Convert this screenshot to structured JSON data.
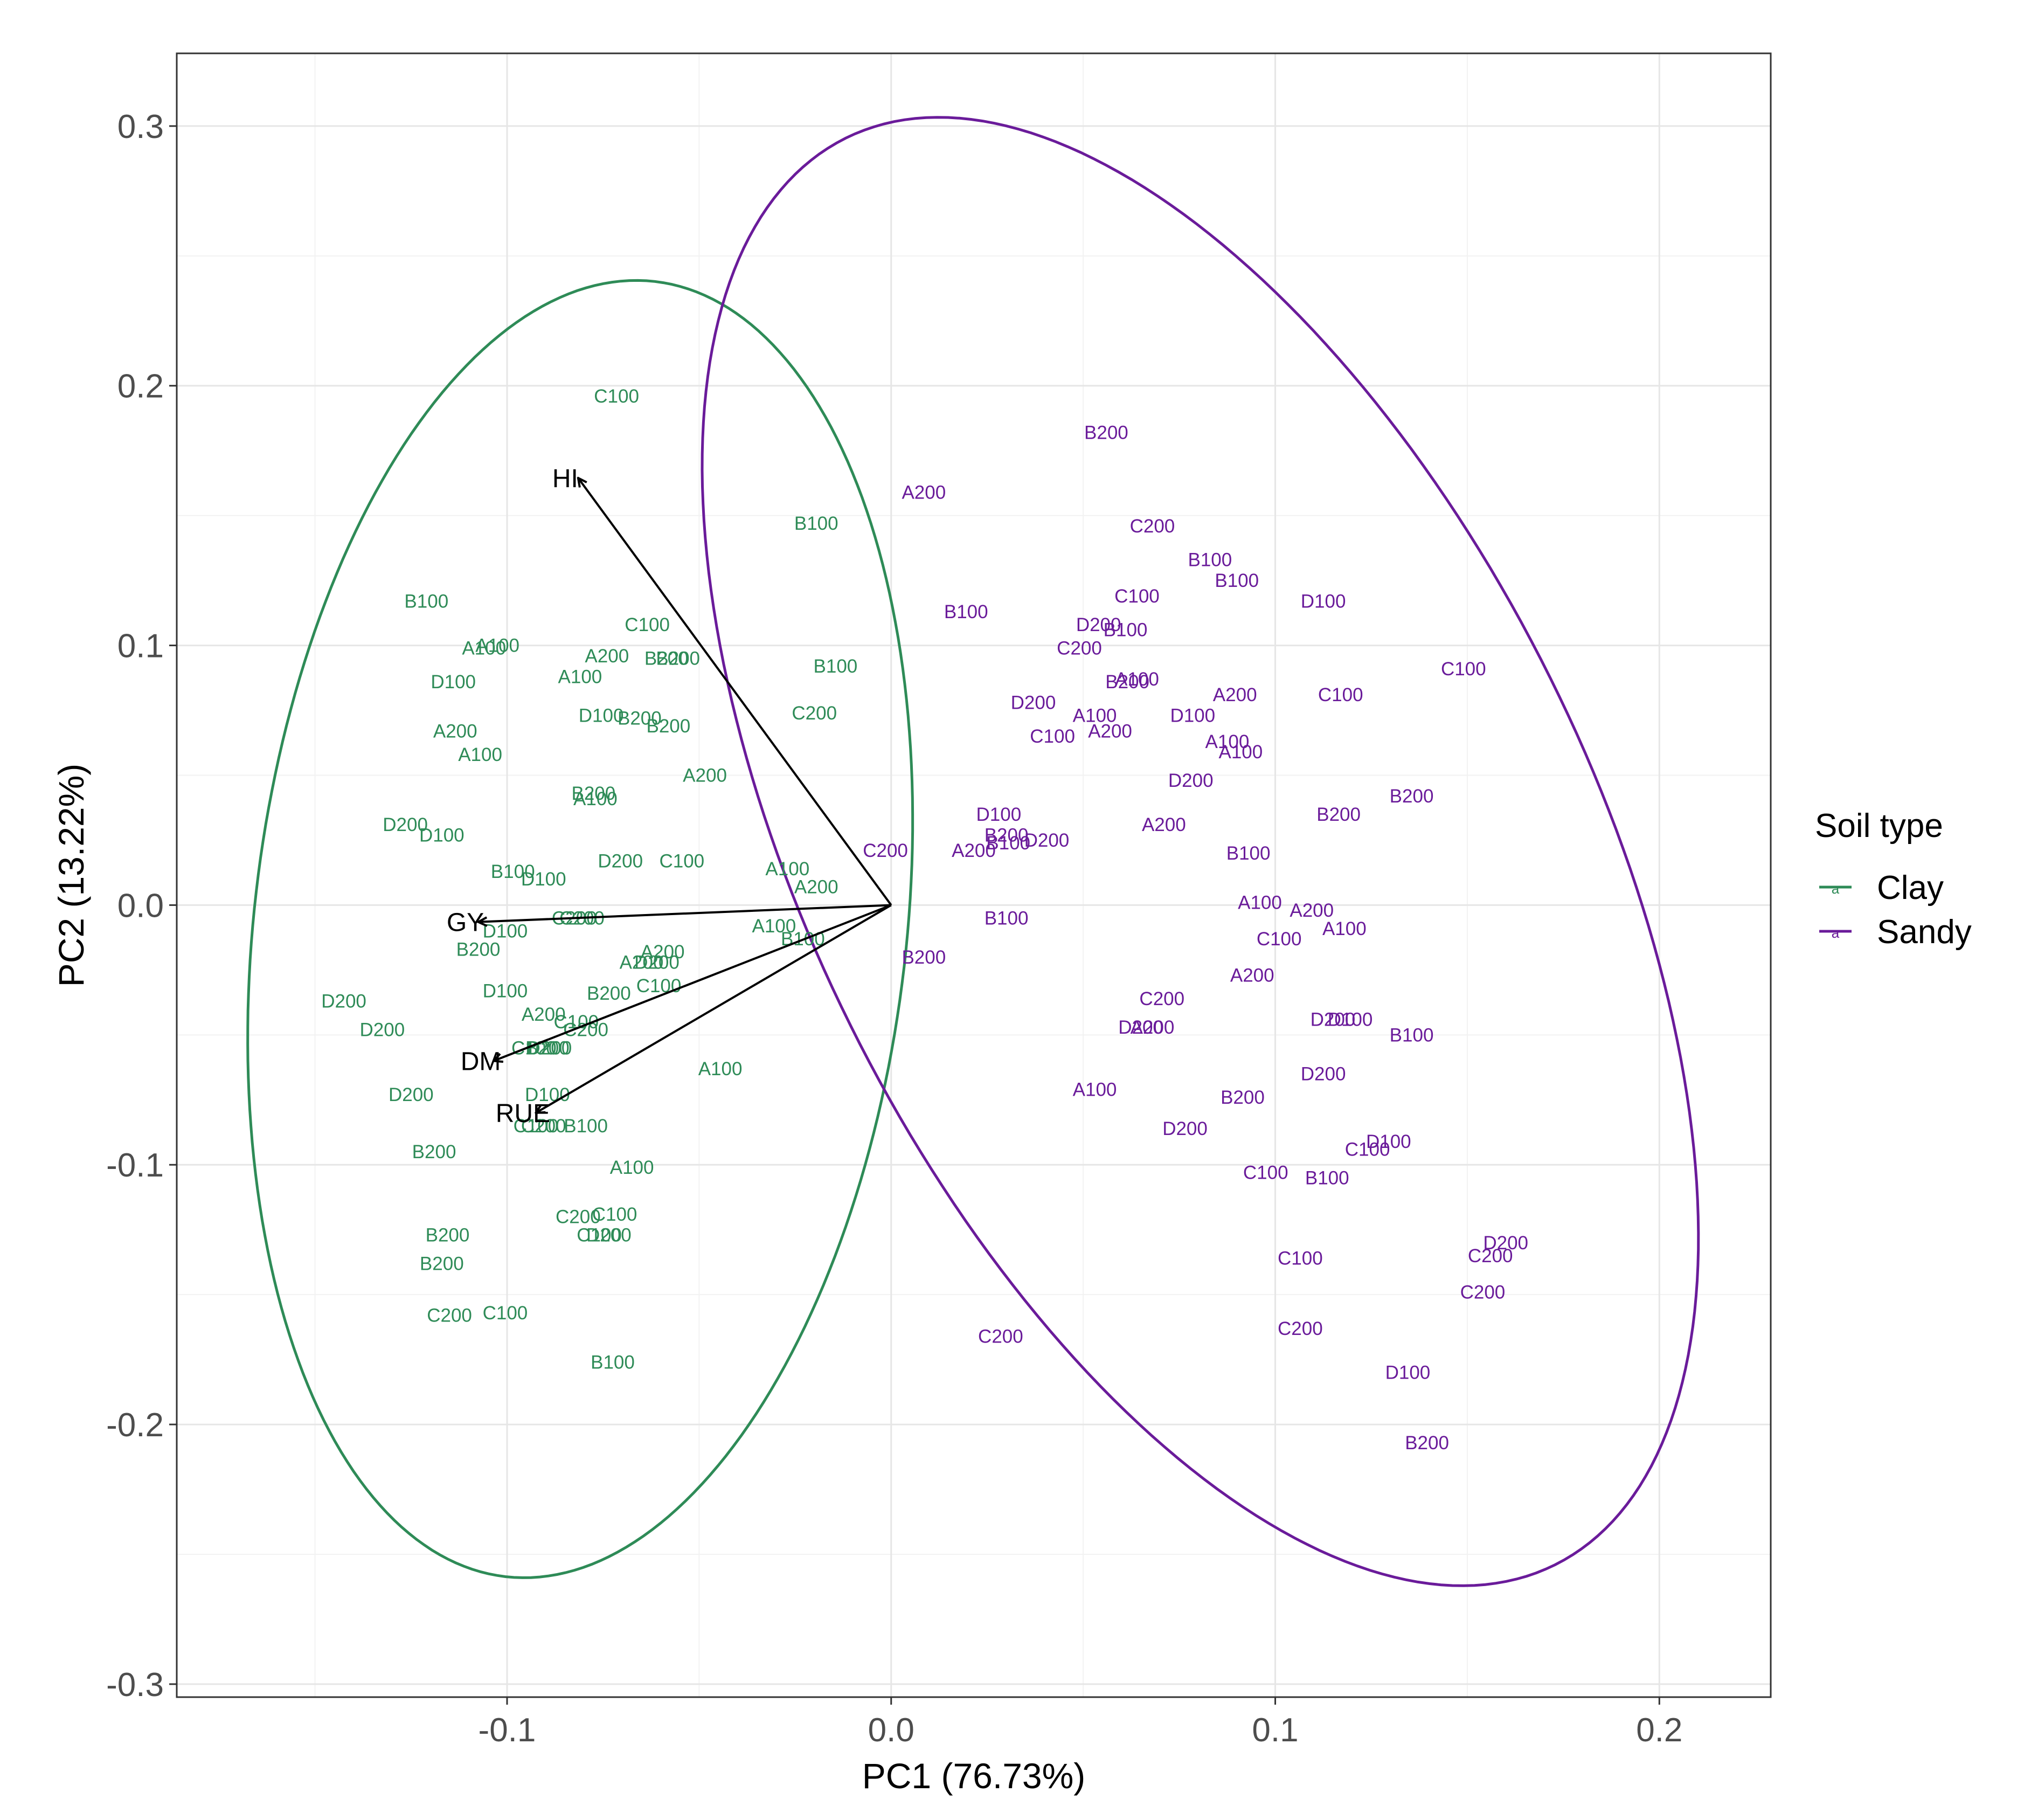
{
  "chart_data": {
    "type": "scatter",
    "subtype": "pca-biplot",
    "xlabel": "PC1 (76.73%)",
    "ylabel": "PC2 (13.22%)",
    "xlim": [
      -0.186,
      0.229
    ],
    "ylim": [
      -0.305,
      0.328
    ],
    "xticks": [
      -0.1,
      0.0,
      0.1,
      0.2
    ],
    "xtick_labels": [
      "-0.1",
      "0.0",
      "0.1",
      "0.2"
    ],
    "yticks": [
      -0.3,
      -0.2,
      -0.1,
      0.0,
      0.1,
      0.2,
      0.3
    ],
    "ytick_labels": [
      "-0.3",
      "-0.2",
      "-0.1",
      "0.0",
      "0.1",
      "0.2",
      "0.3"
    ],
    "grid": true,
    "legend": {
      "title": "Soil type",
      "position": "right",
      "glyph": "a",
      "entries": [
        {
          "label": "Clay",
          "color": "#2e8b57"
        },
        {
          "label": "Sandy",
          "color": "#6a1b9a"
        }
      ]
    },
    "series": [
      {
        "name": "Clay",
        "color": "#2e8b57",
        "ellipse": {
          "center": [
            -0.057,
            -0.009
          ],
          "points": [
            [
              -0.06,
              0.248
            ],
            [
              0.003,
              -0.01
            ],
            [
              -0.103,
              -0.267
            ],
            [
              -0.168,
              -0.07
            ],
            [
              -0.123,
              0.18
            ],
            [
              -0.01,
              0.15
            ],
            [
              0.0,
              -0.08
            ],
            [
              -0.16,
              0.05
            ],
            [
              -0.08,
              -0.24
            ]
          ]
        },
        "points": [
          {
            "label": "C100",
            "x": -0.0715,
            "y": 0.196
          },
          {
            "label": "B100",
            "x": -0.0195,
            "y": 0.147
          },
          {
            "label": "B100",
            "x": -0.121,
            "y": 0.117
          },
          {
            "label": "C100",
            "x": -0.0635,
            "y": 0.108
          },
          {
            "label": "A100",
            "x": -0.106,
            "y": 0.099
          },
          {
            "label": "A100",
            "x": -0.1025,
            "y": 0.1
          },
          {
            "label": "A200",
            "x": -0.074,
            "y": 0.096
          },
          {
            "label": "B200",
            "x": -0.0585,
            "y": 0.095
          },
          {
            "label": "B200",
            "x": -0.0555,
            "y": 0.095
          },
          {
            "label": "D100",
            "x": -0.114,
            "y": 0.086
          },
          {
            "label": "A100",
            "x": -0.081,
            "y": 0.088
          },
          {
            "label": "B100",
            "x": -0.0145,
            "y": 0.092
          },
          {
            "label": "D100",
            "x": -0.0755,
            "y": 0.073
          },
          {
            "label": "B200",
            "x": -0.0655,
            "y": 0.072
          },
          {
            "label": "B200",
            "x": -0.058,
            "y": 0.069
          },
          {
            "label": "C200",
            "x": -0.02,
            "y": 0.074
          },
          {
            "label": "A200",
            "x": -0.1135,
            "y": 0.067
          },
          {
            "label": "A100",
            "x": -0.107,
            "y": 0.058
          },
          {
            "label": "A200",
            "x": -0.0485,
            "y": 0.05
          },
          {
            "label": "B200",
            "x": -0.0775,
            "y": 0.043
          },
          {
            "label": "A100",
            "x": -0.077,
            "y": 0.041
          },
          {
            "label": "D200",
            "x": -0.1265,
            "y": 0.031
          },
          {
            "label": "D100",
            "x": -0.117,
            "y": 0.027
          },
          {
            "label": "D200",
            "x": -0.0705,
            "y": 0.017
          },
          {
            "label": "C100",
            "x": -0.0545,
            "y": 0.017
          },
          {
            "label": "B100",
            "x": -0.0985,
            "y": 0.013
          },
          {
            "label": "D100",
            "x": -0.0905,
            "y": 0.01
          },
          {
            "label": "A100",
            "x": -0.027,
            "y": 0.014
          },
          {
            "label": "A200",
            "x": -0.0195,
            "y": 0.007
          },
          {
            "label": "C200",
            "x": -0.0825,
            "y": -0.005
          },
          {
            "label": "C200",
            "x": -0.0805,
            "y": -0.005
          },
          {
            "label": "D100",
            "x": -0.1005,
            "y": -0.01
          },
          {
            "label": "A100",
            "x": -0.0305,
            "y": -0.008
          },
          {
            "label": "B100",
            "x": -0.023,
            "y": -0.013
          },
          {
            "label": "B200",
            "x": -0.1075,
            "y": -0.017
          },
          {
            "label": "A200",
            "x": -0.065,
            "y": -0.022
          },
          {
            "label": "D200",
            "x": -0.061,
            "y": -0.022
          },
          {
            "label": "A200",
            "x": -0.0595,
            "y": -0.018
          },
          {
            "label": "C100",
            "x": -0.0605,
            "y": -0.031
          },
          {
            "label": "D200",
            "x": -0.1425,
            "y": -0.037
          },
          {
            "label": "D100",
            "x": -0.1005,
            "y": -0.033
          },
          {
            "label": "B200",
            "x": -0.0735,
            "y": -0.034
          },
          {
            "label": "A200",
            "x": -0.0905,
            "y": -0.042
          },
          {
            "label": "C100",
            "x": -0.082,
            "y": -0.045
          },
          {
            "label": "C200",
            "x": -0.0795,
            "y": -0.048
          },
          {
            "label": "D200",
            "x": -0.1325,
            "y": -0.048
          },
          {
            "label": "C100",
            "x": -0.093,
            "y": -0.055
          },
          {
            "label": "B200",
            "x": -0.0895,
            "y": -0.055
          },
          {
            "label": "D200",
            "x": -0.089,
            "y": -0.055
          },
          {
            "label": "A100",
            "x": -0.0445,
            "y": -0.063
          },
          {
            "label": "D100",
            "x": -0.0895,
            "y": -0.073
          },
          {
            "label": "D200",
            "x": -0.125,
            "y": -0.073
          },
          {
            "label": "C100",
            "x": -0.0925,
            "y": -0.085
          },
          {
            "label": "C200",
            "x": -0.0905,
            "y": -0.085
          },
          {
            "label": "B100",
            "x": -0.0795,
            "y": -0.085
          },
          {
            "label": "B200",
            "x": -0.119,
            "y": -0.095
          },
          {
            "label": "A100",
            "x": -0.0675,
            "y": -0.101
          },
          {
            "label": "C200",
            "x": -0.0815,
            "y": -0.12
          },
          {
            "label": "C100",
            "x": -0.072,
            "y": -0.119
          },
          {
            "label": "C100",
            "x": -0.076,
            "y": -0.127
          },
          {
            "label": "D200",
            "x": -0.0735,
            "y": -0.127
          },
          {
            "label": "B200",
            "x": -0.1155,
            "y": -0.127
          },
          {
            "label": "B200",
            "x": -0.117,
            "y": -0.138
          },
          {
            "label": "C200",
            "x": -0.115,
            "y": -0.158
          },
          {
            "label": "C100",
            "x": -0.1005,
            "y": -0.157
          },
          {
            "label": "B100",
            "x": -0.0725,
            "y": -0.176
          }
        ]
      },
      {
        "name": "Sandy",
        "color": "#6a1b9a",
        "ellipse": {
          "center": [
            0.093,
            0.013
          ],
          "points": [
            [
              0.018,
              0.298
            ],
            [
              0.207,
              -0.13
            ],
            [
              0.152,
              -0.276
            ],
            [
              -0.028,
              -0.01
            ],
            [
              -0.047,
              0.15
            ],
            [
              0.174,
              0.08
            ],
            [
              0.172,
              -0.25
            ],
            [
              0.04,
              -0.14
            ],
            [
              0.1,
              0.24
            ]
          ]
        },
        "points": [
          {
            "label": "B200",
            "x": 0.056,
            "y": 0.182
          },
          {
            "label": "A200",
            "x": 0.0085,
            "y": 0.159
          },
          {
            "label": "C200",
            "x": 0.068,
            "y": 0.146
          },
          {
            "label": "B100",
            "x": 0.083,
            "y": 0.133
          },
          {
            "label": "B100",
            "x": 0.09,
            "y": 0.125
          },
          {
            "label": "C100",
            "x": 0.064,
            "y": 0.119
          },
          {
            "label": "D100",
            "x": 0.1125,
            "y": 0.117
          },
          {
            "label": "B100",
            "x": 0.0195,
            "y": 0.113
          },
          {
            "label": "D200",
            "x": 0.054,
            "y": 0.108
          },
          {
            "label": "B100",
            "x": 0.061,
            "y": 0.106
          },
          {
            "label": "C200",
            "x": 0.049,
            "y": 0.099
          },
          {
            "label": "C100",
            "x": 0.149,
            "y": 0.091
          },
          {
            "label": "A100",
            "x": 0.064,
            "y": 0.087
          },
          {
            "label": "B200",
            "x": 0.0615,
            "y": 0.086
          },
          {
            "label": "A200",
            "x": 0.0895,
            "y": 0.081
          },
          {
            "label": "C100",
            "x": 0.117,
            "y": 0.081
          },
          {
            "label": "D200",
            "x": 0.037,
            "y": 0.078
          },
          {
            "label": "A100",
            "x": 0.053,
            "y": 0.073
          },
          {
            "label": "D100",
            "x": 0.0785,
            "y": 0.073
          },
          {
            "label": "C100",
            "x": 0.042,
            "y": 0.065
          },
          {
            "label": "A200",
            "x": 0.057,
            "y": 0.067
          },
          {
            "label": "A100",
            "x": 0.0875,
            "y": 0.063
          },
          {
            "label": "A100",
            "x": 0.091,
            "y": 0.059
          },
          {
            "label": "D200",
            "x": 0.078,
            "y": 0.048
          },
          {
            "label": "B200",
            "x": 0.1355,
            "y": 0.042
          },
          {
            "label": "D100",
            "x": 0.028,
            "y": 0.035
          },
          {
            "label": "B200",
            "x": 0.1165,
            "y": 0.035
          },
          {
            "label": "A200",
            "x": 0.071,
            "y": 0.031
          },
          {
            "label": "B200",
            "x": 0.03,
            "y": 0.027
          },
          {
            "label": "B100",
            "x": 0.0305,
            "y": 0.024
          },
          {
            "label": "D200",
            "x": 0.0405,
            "y": 0.025
          },
          {
            "label": "A200",
            "x": 0.0215,
            "y": 0.021
          },
          {
            "label": "C200",
            "x": -0.0015,
            "y": 0.021
          },
          {
            "label": "B100",
            "x": 0.093,
            "y": 0.02
          },
          {
            "label": "A100",
            "x": 0.096,
            "y": 0.001
          },
          {
            "label": "A200",
            "x": 0.1095,
            "y": -0.002
          },
          {
            "label": "B100",
            "x": 0.03,
            "y": -0.005
          },
          {
            "label": "A100",
            "x": 0.118,
            "y": -0.009
          },
          {
            "label": "C100",
            "x": 0.101,
            "y": -0.013
          },
          {
            "label": "B200",
            "x": 0.0085,
            "y": -0.02
          },
          {
            "label": "A200",
            "x": 0.094,
            "y": -0.027
          },
          {
            "label": "C200",
            "x": 0.0705,
            "y": -0.036
          },
          {
            "label": "D200",
            "x": 0.065,
            "y": -0.047
          },
          {
            "label": "A200",
            "x": 0.068,
            "y": -0.047
          },
          {
            "label": "D200",
            "x": 0.115,
            "y": -0.044
          },
          {
            "label": "D100",
            "x": 0.1195,
            "y": -0.044
          },
          {
            "label": "B100",
            "x": 0.1355,
            "y": -0.05
          },
          {
            "label": "D200",
            "x": 0.1125,
            "y": -0.065
          },
          {
            "label": "A100",
            "x": 0.053,
            "y": -0.071
          },
          {
            "label": "B200",
            "x": 0.0915,
            "y": -0.074
          },
          {
            "label": "D200",
            "x": 0.0765,
            "y": -0.086
          },
          {
            "label": "D100",
            "x": 0.1295,
            "y": -0.091
          },
          {
            "label": "C100",
            "x": 0.124,
            "y": -0.094
          },
          {
            "label": "C100",
            "x": 0.0975,
            "y": -0.103
          },
          {
            "label": "B100",
            "x": 0.1135,
            "y": -0.105
          },
          {
            "label": "D200",
            "x": 0.16,
            "y": -0.13
          },
          {
            "label": "C200",
            "x": 0.156,
            "y": -0.135
          },
          {
            "label": "C100",
            "x": 0.1065,
            "y": -0.136
          },
          {
            "label": "C200",
            "x": 0.154,
            "y": -0.149
          },
          {
            "label": "C200",
            "x": 0.1065,
            "y": -0.163
          },
          {
            "label": "C200",
            "x": 0.0285,
            "y": -0.166
          },
          {
            "label": "D100",
            "x": 0.1345,
            "y": -0.18
          },
          {
            "label": "B200",
            "x": 0.1395,
            "y": -0.207
          }
        ]
      }
    ],
    "loadings": [
      {
        "label": "HI",
        "x": -0.0815,
        "y": 0.1645
      },
      {
        "label": "GY",
        "x": -0.1075,
        "y": -0.0065
      },
      {
        "label": "DM",
        "x": -0.1035,
        "y": -0.06
      },
      {
        "label": "RUE",
        "x": -0.0925,
        "y": -0.08
      }
    ]
  }
}
